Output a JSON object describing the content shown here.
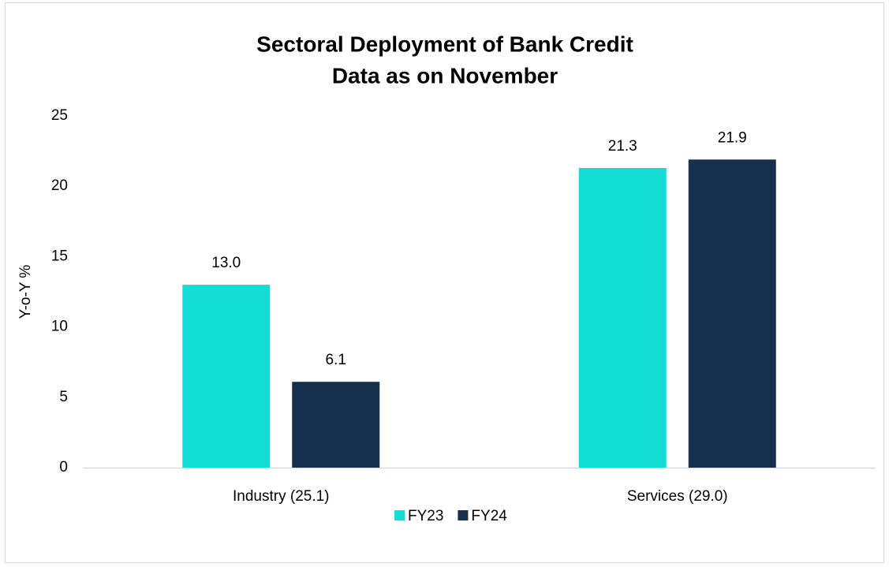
{
  "chart_data": {
    "type": "bar",
    "title": "Sectoral Deployment of Bank Credit",
    "subtitle": "Data as on November",
    "y_label": "Y-o-Y %",
    "categories": [
      "Industry (25.1)",
      "Services (29.0)"
    ],
    "series": [
      {
        "name": "FY23",
        "color": "#13ddd5",
        "values": [
          13.0,
          21.3
        ],
        "value_labels": [
          "13.0",
          "21.3"
        ]
      },
      {
        "name": "FY24",
        "color": "#17304d",
        "values": [
          6.1,
          21.9
        ],
        "value_labels": [
          "6.1",
          "21.9"
        ]
      }
    ],
    "ylim": [
      0,
      25
    ],
    "yticks": [
      0,
      5,
      10,
      15,
      20,
      25
    ],
    "grid": false,
    "legend": "bottom"
  }
}
